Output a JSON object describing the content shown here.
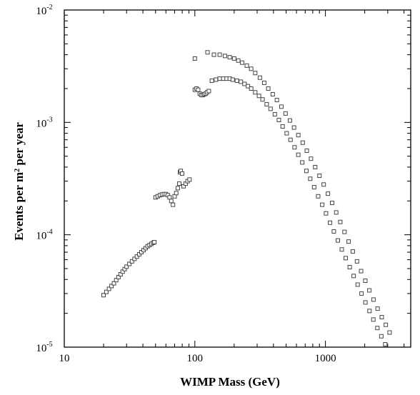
{
  "chart_data": {
    "type": "scatter",
    "title": "",
    "xlabel": "WIMP Mass (GeV)",
    "ylabel_parts": {
      "pre": "Events per m",
      "sup": "2",
      "post": " per year"
    },
    "xscale": "log",
    "yscale": "log",
    "xlim": [
      10,
      4500
    ],
    "ylim": [
      1e-05,
      0.01
    ],
    "x_ticks": [
      {
        "value": 10,
        "label": "10"
      },
      {
        "value": 100,
        "label": "100"
      },
      {
        "value": 1000,
        "label": "1000"
      }
    ],
    "y_ticks": [
      {
        "value": 1e-05,
        "base": "10",
        "exp": "-5"
      },
      {
        "value": 0.0001,
        "base": "10",
        "exp": "-4"
      },
      {
        "value": 0.001,
        "base": "10",
        "exp": "-3"
      },
      {
        "value": 0.01,
        "base": "10",
        "exp": "-2"
      }
    ],
    "grid": false,
    "legend": "none",
    "marker_color": "#444444",
    "series": [
      {
        "points": [
          [
            20,
            2.9e-05
          ],
          [
            21,
            3.1e-05
          ],
          [
            22,
            3.3e-05
          ],
          [
            23,
            3.5e-05
          ],
          [
            24,
            3.7e-05
          ],
          [
            25,
            3.95e-05
          ],
          [
            26,
            4.2e-05
          ],
          [
            27,
            4.45e-05
          ],
          [
            28,
            4.7e-05
          ],
          [
            29,
            4.95e-05
          ],
          [
            30,
            5.2e-05
          ],
          [
            31.5,
            5.5e-05
          ],
          [
            33,
            5.8e-05
          ],
          [
            34.5,
            6.1e-05
          ],
          [
            36,
            6.4e-05
          ],
          [
            37.5,
            6.7e-05
          ],
          [
            39,
            7e-05
          ],
          [
            40.5,
            7.3e-05
          ],
          [
            42,
            7.6e-05
          ],
          [
            43.5,
            7.9e-05
          ],
          [
            45,
            8.1e-05
          ],
          [
            46.5,
            8.3e-05
          ],
          [
            48,
            8.5e-05
          ],
          [
            49,
            8.6e-05
          ],
          [
            50,
            0.000215
          ],
          [
            52,
            0.00022
          ],
          [
            54,
            0.000225
          ],
          [
            56,
            0.000228
          ],
          [
            58,
            0.00023
          ],
          [
            60,
            0.00023
          ],
          [
            62,
            0.000225
          ],
          [
            64,
            0.000215
          ],
          [
            66,
            0.0002
          ],
          [
            68,
            0.000185
          ],
          [
            70,
            0.00022
          ],
          [
            72,
            0.000235
          ],
          [
            74,
            0.00026
          ],
          [
            76,
            0.000285
          ],
          [
            77,
            0.00036
          ],
          [
            78,
            0.00037
          ],
          [
            80,
            0.00035
          ],
          [
            82,
            0.00027
          ],
          [
            85,
            0.000285
          ],
          [
            88,
            0.0003
          ],
          [
            91,
            0.00031
          ],
          [
            100,
            0.00195
          ],
          [
            103,
            0.002
          ],
          [
            106,
            0.00195
          ],
          [
            109,
            0.0018
          ],
          [
            112,
            0.00175
          ],
          [
            115,
            0.00175
          ],
          [
            118,
            0.00178
          ],
          [
            121,
            0.0018
          ],
          [
            124,
            0.00185
          ],
          [
            128,
            0.0019
          ],
          [
            135,
            0.00235
          ],
          [
            145,
            0.0024
          ],
          [
            155,
            0.00245
          ],
          [
            165,
            0.00245
          ],
          [
            175,
            0.00245
          ],
          [
            185,
            0.00245
          ],
          [
            195,
            0.0024
          ],
          [
            210,
            0.00235
          ],
          [
            225,
            0.0023
          ],
          [
            240,
            0.0022
          ],
          [
            255,
            0.0021
          ],
          [
            270,
            0.002
          ],
          [
            290,
            0.00185
          ],
          [
            310,
            0.00172
          ],
          [
            330,
            0.0016
          ],
          [
            355,
            0.00145
          ],
          [
            380,
            0.00132
          ],
          [
            410,
            0.00118
          ],
          [
            440,
            0.00105
          ],
          [
            470,
            0.00092
          ],
          [
            505,
            0.0008
          ],
          [
            540,
            0.0007
          ],
          [
            580,
            0.0006
          ],
          [
            620,
            0.000515
          ],
          [
            665,
            0.00044
          ],
          [
            715,
            0.00037
          ],
          [
            765,
            0.000315
          ],
          [
            820,
            0.000265
          ],
          [
            880,
            0.00022
          ],
          [
            945,
            0.000185
          ],
          [
            1010,
            0.000155
          ],
          [
            1085,
            0.000128
          ],
          [
            1160,
            0.000107
          ],
          [
            1245,
            8.9e-05
          ],
          [
            1335,
            7.4e-05
          ],
          [
            1430,
            6.2e-05
          ],
          [
            1535,
            5.15e-05
          ],
          [
            1645,
            4.3e-05
          ],
          [
            1765,
            3.6e-05
          ],
          [
            1890,
            3e-05
          ],
          [
            2025,
            2.5e-05
          ],
          [
            2175,
            2.1e-05
          ],
          [
            2330,
            1.76e-05
          ],
          [
            2500,
            1.48e-05
          ],
          [
            2680,
            1.25e-05
          ],
          [
            2870,
            1.06e-05
          ]
        ]
      },
      {
        "points": [
          [
            100,
            0.0037
          ],
          [
            125,
            0.0042
          ],
          [
            140,
            0.004
          ],
          [
            155,
            0.004
          ],
          [
            170,
            0.0039
          ],
          [
            185,
            0.0038
          ],
          [
            200,
            0.0037
          ],
          [
            215,
            0.00355
          ],
          [
            230,
            0.0034
          ],
          [
            250,
            0.0032
          ],
          [
            270,
            0.003
          ],
          [
            290,
            0.00275
          ],
          [
            315,
            0.0025
          ],
          [
            340,
            0.00225
          ],
          [
            365,
            0.002
          ],
          [
            395,
            0.00178
          ],
          [
            425,
            0.00158
          ],
          [
            460,
            0.00138
          ],
          [
            495,
            0.0012
          ],
          [
            535,
            0.00104
          ],
          [
            575,
            0.0009
          ],
          [
            620,
            0.00077
          ],
          [
            670,
            0.00066
          ],
          [
            720,
            0.00056
          ],
          [
            775,
            0.000475
          ],
          [
            835,
            0.0004
          ],
          [
            900,
            0.000335
          ],
          [
            970,
            0.00028
          ],
          [
            1045,
            0.000232
          ],
          [
            1125,
            0.000192
          ],
          [
            1210,
            0.000158
          ],
          [
            1300,
            0.00013
          ],
          [
            1400,
            0.000106
          ],
          [
            1505,
            8.7e-05
          ],
          [
            1620,
            7.1e-05
          ],
          [
            1745,
            5.8e-05
          ],
          [
            1875,
            4.75e-05
          ],
          [
            2020,
            3.9e-05
          ],
          [
            2170,
            3.2e-05
          ],
          [
            2335,
            2.65e-05
          ],
          [
            2510,
            2.2e-05
          ],
          [
            2700,
            1.85e-05
          ],
          [
            2900,
            1.58e-05
          ],
          [
            3100,
            1.35e-05
          ]
        ]
      }
    ]
  }
}
